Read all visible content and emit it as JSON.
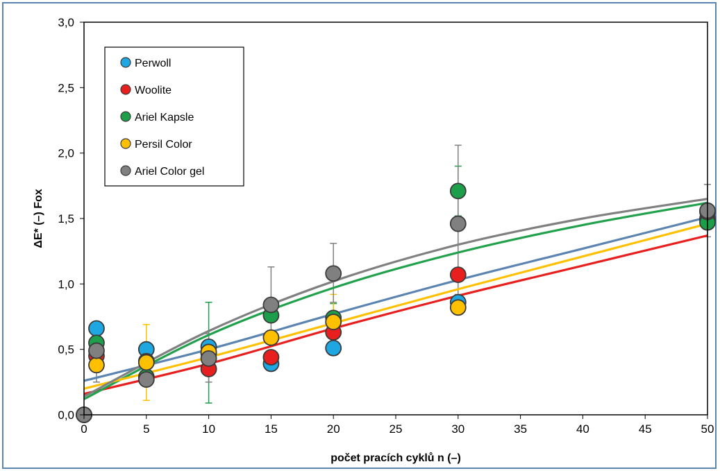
{
  "chart_data": {
    "type": "scatter",
    "xlabel": "počet pracích cyklů n (–)",
    "ylabel": "ΔE* (–) Fox",
    "xlim": [
      0,
      50
    ],
    "ylim": [
      0,
      3.0
    ],
    "xticks": [
      0,
      5,
      10,
      15,
      20,
      25,
      30,
      35,
      40,
      45,
      50
    ],
    "yticks": [
      0.0,
      0.5,
      1.0,
      1.5,
      2.0,
      2.5,
      3.0
    ],
    "xtick_labels": [
      "0",
      "5",
      "10",
      "15",
      "20",
      "25",
      "30",
      "35",
      "40",
      "45",
      "50"
    ],
    "ytick_labels": [
      "0,0",
      "0,5",
      "1,0",
      "1,5",
      "2,0",
      "2,5",
      "3,0"
    ],
    "legend_position": "top-left",
    "grid": false,
    "series": [
      {
        "name": "Perwoll",
        "marker_color": "#1ea7e1",
        "line_color": "#5b84b1",
        "points": [
          [
            0,
            0.0
          ],
          [
            1,
            0.66
          ],
          [
            5,
            0.5
          ],
          [
            10,
            0.52
          ],
          [
            15,
            0.39
          ],
          [
            20,
            0.51
          ],
          [
            30,
            0.86
          ],
          [
            50,
            1.5
          ]
        ],
        "trend": [
          [
            0,
            0.26
          ],
          [
            10,
            0.5
          ],
          [
            20,
            0.77
          ],
          [
            30,
            1.03
          ],
          [
            40,
            1.27
          ],
          [
            50,
            1.51
          ]
        ],
        "errors": []
      },
      {
        "name": "Woolite",
        "marker_color": "#e81f1f",
        "line_color": "#e81f1f",
        "points": [
          [
            0,
            0.0
          ],
          [
            1,
            0.45
          ],
          [
            5,
            0.41
          ],
          [
            10,
            0.35
          ],
          [
            15,
            0.44
          ],
          [
            20,
            0.63
          ],
          [
            30,
            1.07
          ],
          [
            50,
            1.49
          ]
        ],
        "trend": [
          [
            0,
            0.16
          ],
          [
            10,
            0.39
          ],
          [
            20,
            0.66
          ],
          [
            30,
            0.91
          ],
          [
            40,
            1.14
          ],
          [
            50,
            1.37
          ]
        ],
        "errors": []
      },
      {
        "name": "Ariel Kapsle",
        "marker_color": "#1d9e4a",
        "line_color": "#22a14d",
        "points": [
          [
            0,
            0.0
          ],
          [
            1,
            0.55
          ],
          [
            5,
            0.29
          ],
          [
            10,
            0.47
          ],
          [
            15,
            0.76
          ],
          [
            20,
            0.74
          ],
          [
            30,
            1.71
          ],
          [
            50,
            1.47
          ]
        ],
        "trend": [
          [
            0,
            0.12
          ],
          [
            10,
            0.61
          ],
          [
            20,
            0.97
          ],
          [
            30,
            1.24
          ],
          [
            40,
            1.45
          ],
          [
            50,
            1.62
          ]
        ],
        "errors": [
          [
            10,
            0.09,
            0.86
          ],
          [
            20,
            0.64,
            0.85
          ],
          [
            30,
            1.52,
            1.9
          ]
        ]
      },
      {
        "name": "Persil Color",
        "marker_color": "#ffc000",
        "line_color": "#ffc000",
        "points": [
          [
            0,
            0.0
          ],
          [
            1,
            0.38
          ],
          [
            5,
            0.4
          ],
          [
            10,
            0.48
          ],
          [
            15,
            0.59
          ],
          [
            20,
            0.71
          ],
          [
            30,
            0.82
          ],
          [
            50,
            1.55
          ]
        ],
        "trend": [
          [
            0,
            0.2
          ],
          [
            10,
            0.44
          ],
          [
            20,
            0.7
          ],
          [
            30,
            0.96
          ],
          [
            40,
            1.21
          ],
          [
            50,
            1.46
          ]
        ],
        "errors": [
          [
            5,
            0.11,
            0.69
          ],
          [
            20,
            0.6,
            0.92
          ]
        ]
      },
      {
        "name": "Ariel Color gel",
        "marker_color": "#808080",
        "line_color": "#808080",
        "points": [
          [
            0,
            0.0
          ],
          [
            1,
            0.49
          ],
          [
            5,
            0.27
          ],
          [
            10,
            0.43
          ],
          [
            15,
            0.84
          ],
          [
            20,
            1.08
          ],
          [
            30,
            1.46
          ],
          [
            50,
            1.56
          ]
        ],
        "trend": [
          [
            0,
            0.14
          ],
          [
            10,
            0.64
          ],
          [
            20,
            1.02
          ],
          [
            30,
            1.3
          ],
          [
            40,
            1.5
          ],
          [
            50,
            1.65
          ]
        ],
        "errors": [
          [
            1,
            0.25,
            0.55
          ],
          [
            10,
            0.25,
            0.62
          ],
          [
            15,
            0.55,
            1.13
          ],
          [
            20,
            0.86,
            1.31
          ],
          [
            30,
            0.92,
            2.06
          ],
          [
            50,
            1.36,
            1.76
          ]
        ]
      }
    ]
  }
}
